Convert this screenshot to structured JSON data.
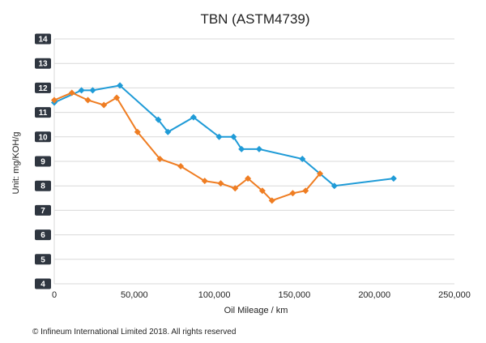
{
  "copyright": "© Infineum International Limited 2018. All rights reserved",
  "chart_data": {
    "type": "line",
    "title": "TBN (ASTM4739)",
    "xlabel": "Oil Mileage / km",
    "ylabel": "Unit: mg/KOH/g",
    "xlim": [
      0,
      250000
    ],
    "ylim": [
      4,
      14
    ],
    "xticks": [
      0,
      50000,
      100000,
      150000,
      200000,
      250000
    ],
    "xtick_labels": [
      "0",
      "50,000",
      "100,000",
      "150,000",
      "200,000",
      "250,000"
    ],
    "yticks": [
      4,
      5,
      6,
      7,
      8,
      9,
      10,
      11,
      12,
      13,
      14
    ],
    "ytick_labels": [
      "4",
      "5",
      "6",
      "7",
      "8",
      "9",
      "10",
      "11",
      "12",
      "13",
      "14"
    ],
    "grid": true,
    "legend": "none",
    "series": [
      {
        "color": "#1f9bd7",
        "points": [
          [
            0,
            11.4
          ],
          [
            17000,
            11.9
          ],
          [
            24000,
            11.9
          ],
          [
            41000,
            12.1
          ],
          [
            65000,
            10.7
          ],
          [
            71000,
            10.2
          ],
          [
            87000,
            10.8
          ],
          [
            103000,
            10.0
          ],
          [
            112000,
            10.0
          ],
          [
            117000,
            9.5
          ],
          [
            128000,
            9.5
          ],
          [
            155000,
            9.1
          ],
          [
            175000,
            8.0
          ],
          [
            212000,
            8.3
          ]
        ]
      },
      {
        "color": "#ef7d22",
        "points": [
          [
            0,
            11.5
          ],
          [
            11000,
            11.8
          ],
          [
            21000,
            11.5
          ],
          [
            31000,
            11.3
          ],
          [
            39000,
            11.6
          ],
          [
            52000,
            10.2
          ],
          [
            66000,
            9.1
          ],
          [
            79000,
            8.8
          ],
          [
            94000,
            8.2
          ],
          [
            104000,
            8.1
          ],
          [
            113000,
            7.9
          ],
          [
            121000,
            8.3
          ],
          [
            130000,
            7.8
          ],
          [
            136000,
            7.4
          ],
          [
            149000,
            7.7
          ],
          [
            157000,
            7.8
          ],
          [
            166000,
            8.5
          ]
        ]
      }
    ]
  }
}
